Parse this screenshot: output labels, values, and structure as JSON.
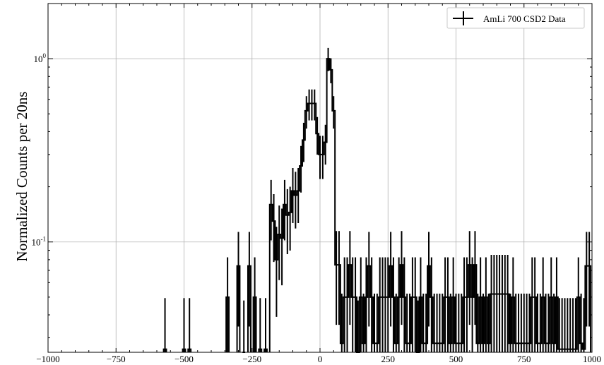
{
  "chart_data": {
    "type": "line",
    "title": "",
    "xlabel": "",
    "ylabel": "Normalized Counts per 20ns",
    "xlim": [
      -1000,
      1000
    ],
    "ylim": [
      0.025,
      2.0
    ],
    "yscale": "log",
    "grid": true,
    "legend_position": "top-right",
    "x_ticks": [
      -1000,
      -750,
      -500,
      -250,
      0,
      250,
      500,
      750,
      1000
    ],
    "x_tick_labels": [
      "−1000",
      "−750",
      "−500",
      "−250",
      "0",
      "250",
      "500",
      "750",
      "1000"
    ],
    "y_ticks": [
      {
        "value": 0.1,
        "base": "10",
        "exp": "-1"
      },
      {
        "value": 1.0,
        "base": "10",
        "exp": "0"
      }
    ],
    "series": [
      {
        "name": "AmLi 700 CSD2 Data",
        "color": "#000000",
        "bin_width": 10,
        "x": [
          -570,
          -500,
          -480,
          -340,
          -300,
          -280,
          -260,
          -240,
          -220,
          -200,
          -180,
          -170,
          -160,
          -150,
          -140,
          -130,
          -120,
          -110,
          -100,
          -90,
          -80,
          -70,
          -60,
          -50,
          -40,
          -30,
          -20,
          -10,
          0,
          10,
          20,
          30,
          40,
          50,
          60,
          70,
          80,
          90,
          100,
          110,
          120,
          130,
          140,
          150,
          160,
          170,
          180,
          190,
          200,
          210,
          220,
          230,
          240,
          250,
          260,
          270,
          280,
          290,
          300,
          310,
          320,
          330,
          340,
          350,
          360,
          370,
          380,
          390,
          400,
          410,
          420,
          430,
          440,
          450,
          460,
          470,
          480,
          490,
          500,
          510,
          520,
          530,
          540,
          550,
          560,
          570,
          580,
          590,
          600,
          610,
          620,
          630,
          640,
          650,
          660,
          670,
          680,
          690,
          700,
          710,
          720,
          730,
          740,
          750,
          760,
          770,
          780,
          790,
          800,
          810,
          820,
          830,
          840,
          850,
          860,
          870,
          880,
          890,
          900,
          910,
          920,
          930,
          940,
          950,
          960,
          970,
          980,
          990
        ],
        "y": [
          0.026,
          0.026,
          0.026,
          0.05,
          0.074,
          0.025,
          0.074,
          0.05,
          0.026,
          0.026,
          0.16,
          0.13,
          0.08,
          0.11,
          0.105,
          0.16,
          0.14,
          0.145,
          0.19,
          0.18,
          0.19,
          0.26,
          0.36,
          0.52,
          0.57,
          0.57,
          0.57,
          0.39,
          0.3,
          0.3,
          0.35,
          1.0,
          0.87,
          0.52,
          0.075,
          0.075,
          0.028,
          0.05,
          0.05,
          0.075,
          0.05,
          0.05,
          0.025,
          0.05,
          0.028,
          0.05,
          0.074,
          0.05,
          0.028,
          0.028,
          0.05,
          0.05,
          0.05,
          0.05,
          0.074,
          0.05,
          0.028,
          0.05,
          0.075,
          0.05,
          0.028,
          0.028,
          0.05,
          0.05,
          0.025,
          0.05,
          0.028,
          0.028,
          0.074,
          0.05,
          0.028,
          0.028,
          0.028,
          0.028,
          0.05,
          0.05,
          0.028,
          0.05,
          0.028,
          0.028,
          0.028,
          0.05,
          0.05,
          0.075,
          0.05,
          0.075,
          0.028,
          0.05,
          0.028,
          0.05,
          0.028,
          0.052,
          0.052,
          0.052,
          0.052,
          0.052,
          0.052,
          0.052,
          0.028,
          0.05,
          0.028,
          0.028,
          0.028,
          0.028,
          0.028,
          0.028,
          0.05,
          0.05,
          0.028,
          0.028,
          0.05,
          0.028,
          0.028,
          0.05,
          0.028,
          0.05,
          0.026,
          0.026,
          0.026,
          0.026,
          0.026,
          0.026,
          0.026,
          0.05,
          0.028,
          0.026,
          0.074,
          0.074
        ]
      }
    ]
  }
}
